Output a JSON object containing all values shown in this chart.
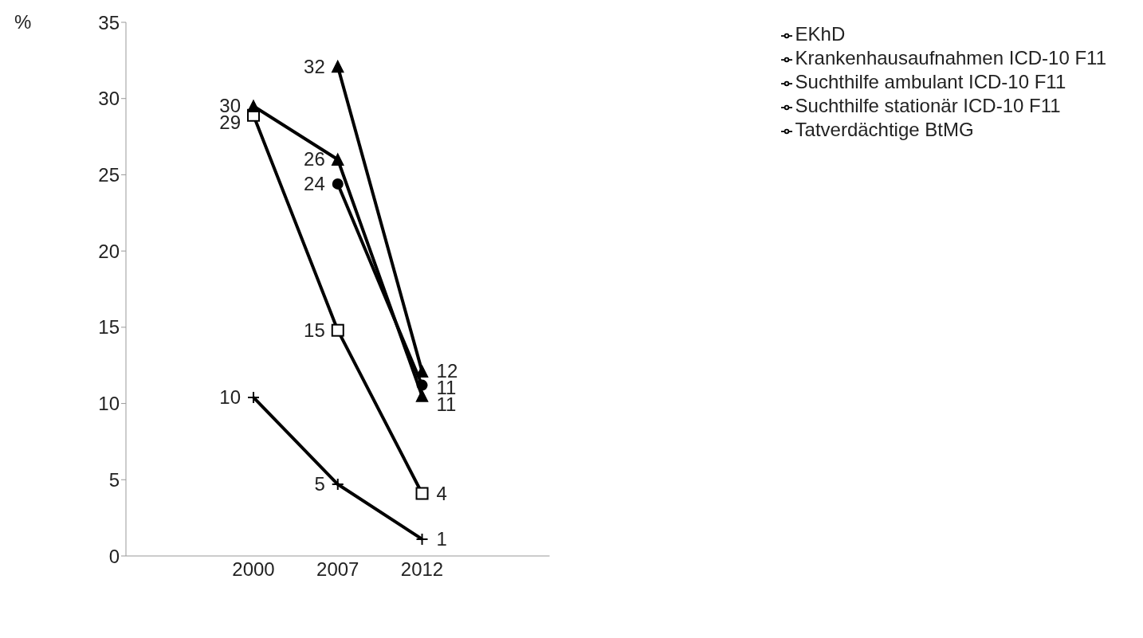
{
  "chart_data": {
    "type": "line",
    "ylabel": "%",
    "categories": [
      "2000",
      "2007",
      "2012"
    ],
    "ylim": [
      0,
      35
    ],
    "yticks": [
      0,
      5,
      10,
      15,
      20,
      25,
      30,
      35
    ],
    "grid": false,
    "legend": "top right",
    "series": [
      {
        "name": "EKhD",
        "color": "#000000",
        "marker": "square",
        "values": [
          28.9,
          14.8,
          4.1
        ],
        "value_labels": [
          "29",
          "15",
          "4"
        ]
      },
      {
        "name": "Krankenhausaufnahmen ICD-10 F11",
        "color": "#000000",
        "marker": "triangle",
        "values": [
          29.5,
          26,
          10.5
        ],
        "value_labels": [
          "30",
          "26",
          "11"
        ]
      },
      {
        "name": "Suchthilfe ambulant  ICD-10 F11",
        "color": "#000000",
        "marker": "circle",
        "values": [
          null,
          24.4,
          11.2
        ],
        "value_labels": [
          null,
          "24",
          "11"
        ]
      },
      {
        "name": "Suchthilfe stationär  ICD-10 F11",
        "color": "#000000",
        "marker": "triangle",
        "values": [
          null,
          32.1,
          12.1
        ],
        "value_labels": [
          null,
          "32",
          "12"
        ]
      },
      {
        "name": "Tatverdächtige BtMG",
        "color": "#000000",
        "marker": "cross",
        "values": [
          10.4,
          4.7,
          1.1
        ],
        "value_labels": [
          "10",
          "5",
          "1"
        ]
      }
    ]
  }
}
